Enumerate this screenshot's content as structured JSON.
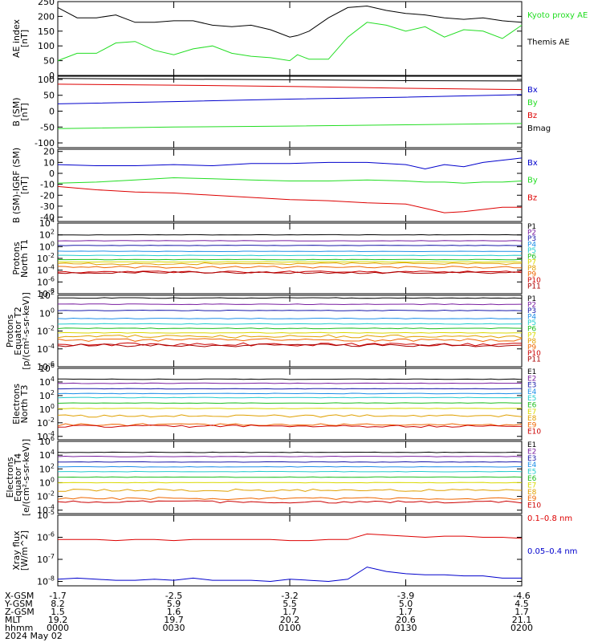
{
  "colors": {
    "black": "#000000",
    "green": "#22dd22",
    "blue": "#0000cc",
    "red": "#dd0000",
    "P1": "#000000",
    "P2": "#7a1fa0",
    "P3": "#1a1aaa",
    "P4": "#1e8fe8",
    "P5": "#22cccc",
    "P6": "#1ebe1e",
    "P7": "#d9d900",
    "P8": "#e0a000",
    "P9": "#ee6600",
    "P10": "#cc0000",
    "P11": "#aa0000"
  },
  "chart_data": [
    {
      "id": "ae",
      "type": "line",
      "ylabel": "AE index",
      "ylabel2": "[nT]",
      "yticks": [
        "250",
        "200",
        "150",
        "100",
        "50",
        "0"
      ],
      "yscale": "linear",
      "ylim": [
        0,
        250
      ],
      "x_minutes": [
        0,
        5,
        10,
        15,
        20,
        25,
        30,
        35,
        40,
        45,
        50,
        55,
        60,
        62,
        65,
        70,
        75,
        80,
        85,
        90,
        95,
        100,
        105,
        110,
        115,
        120
      ],
      "series": [
        {
          "name": "Themis AE",
          "color": "black",
          "values": [
            230,
            195,
            195,
            205,
            180,
            180,
            185,
            185,
            170,
            165,
            170,
            155,
            130,
            135,
            150,
            195,
            230,
            235,
            220,
            210,
            205,
            195,
            190,
            195,
            185,
            180
          ]
        },
        {
          "name": "Kyoto proxy AE",
          "color": "green",
          "values": [
            50,
            75,
            75,
            110,
            115,
            85,
            70,
            90,
            100,
            75,
            65,
            60,
            50,
            70,
            55,
            55,
            130,
            180,
            170,
            150,
            165,
            130,
            155,
            150,
            125,
            170
          ]
        }
      ],
      "legend": [
        "Kyoto proxy AE",
        "Themis AE"
      ]
    },
    {
      "id": "bsm",
      "type": "line",
      "ylabel": "B (SM)",
      "ylabel2": "[nT]",
      "yticks": [
        "100",
        "50",
        "0",
        "-50",
        "-100"
      ],
      "yscale": "linear",
      "ylim": [
        -115,
        110
      ],
      "x_minutes": [
        0,
        30,
        60,
        90,
        120
      ],
      "series": [
        {
          "name": "Bx",
          "color": "blue",
          "values": [
            23,
            30,
            38,
            44,
            52
          ]
        },
        {
          "name": "By",
          "color": "green",
          "values": [
            -55,
            -50,
            -47,
            -43,
            -39
          ]
        },
        {
          "name": "Bz",
          "color": "red",
          "values": [
            85,
            82,
            78,
            72,
            68
          ]
        },
        {
          "name": "Bmag",
          "color": "black",
          "values": [
            103,
            101,
            99,
            96,
            95
          ]
        }
      ],
      "legend": [
        "Bx",
        "By",
        "Bz",
        "Bmag"
      ]
    },
    {
      "id": "bsmigrf",
      "type": "line",
      "ylabel": "B (SM)-IGRF (SM)",
      "ylabel2": "[nT]",
      "yticks": [
        "20",
        "10",
        "0",
        "-10",
        "-20",
        "-30",
        "-40"
      ],
      "yscale": "linear",
      "ylim": [
        -44,
        22
      ],
      "x_minutes": [
        0,
        10,
        20,
        30,
        40,
        50,
        60,
        70,
        80,
        90,
        95,
        100,
        105,
        110,
        115,
        120
      ],
      "series": [
        {
          "name": "Bx",
          "color": "blue",
          "values": [
            8,
            7,
            7,
            8,
            7,
            9,
            9,
            10,
            10,
            8,
            4,
            8,
            6,
            10,
            12,
            14
          ]
        },
        {
          "name": "By",
          "color": "green",
          "values": [
            -9,
            -8,
            -6,
            -4,
            -5,
            -6,
            -7,
            -7,
            -6,
            -7,
            -8,
            -8,
            -9,
            -8,
            -8,
            -7
          ]
        },
        {
          "name": "Bz",
          "color": "red",
          "values": [
            -12,
            -15,
            -17,
            -18,
            -20,
            -22,
            -24,
            -25,
            -27,
            -28,
            -32,
            -36,
            -35,
            -33,
            -31,
            -31
          ]
        }
      ],
      "legend": [
        "Bx",
        "By",
        "Bz"
      ]
    },
    {
      "id": "protN",
      "type": "line",
      "ylabel": "Protons",
      "ylabel2": "North T1",
      "yticks": [
        "10^4",
        "10^2",
        "10^0",
        "10^-2",
        "10^-4",
        "10^-6",
        "10^-8"
      ],
      "yscale": "log",
      "ylim": [
        -8,
        4
      ],
      "legend": [
        "P1",
        "P2",
        "P3",
        "P4",
        "P5",
        "P6",
        "P7",
        "P8",
        "P9",
        "P10",
        "P11"
      ],
      "levels_log": [
        2.0,
        1.0,
        0.2,
        -0.8,
        -1.5,
        -2.2,
        -2.6,
        -2.9,
        -3.5,
        -4.3,
        -4.4
      ]
    },
    {
      "id": "protE",
      "type": "line",
      "ylabel": "Protons",
      "ylabel2": "Equator T2",
      "ylabel3": "[p/(cm²-s-sr-keV)]",
      "yticks": [
        "10^2",
        "10^0",
        "10^-2",
        "10^-4",
        "10^-6"
      ],
      "yscale": "log",
      "ylim": [
        -6,
        2
      ],
      "legend": [
        "P1",
        "P2",
        "P3",
        "P4",
        "P5",
        "P6",
        "P7",
        "P8",
        "P9",
        "P10",
        "P11"
      ],
      "levels_log": [
        1.7,
        1.0,
        0.3,
        -0.6,
        -1.2,
        -1.7,
        -2.2,
        -2.6,
        -3.0,
        -3.5,
        -3.6
      ]
    },
    {
      "id": "elecN",
      "type": "line",
      "ylabel": "Electrons",
      "ylabel2": "North T3",
      "yticks": [
        "10^6",
        "10^4",
        "10^2",
        "10^0",
        "10^-2",
        "10^-4"
      ],
      "yscale": "log",
      "ylim": [
        -4.5,
        6
      ],
      "legend": [
        "E1",
        "E2",
        "E3",
        "E4",
        "E5",
        "E6",
        "E7",
        "E8",
        "E9",
        "E10"
      ],
      "levels_log": [
        4.4,
        3.8,
        3.0,
        2.3,
        1.7,
        0.9,
        0.1,
        -1.0,
        -2.3,
        -2.5
      ]
    },
    {
      "id": "elecE",
      "type": "line",
      "ylabel": "Electrons",
      "ylabel2": "Equator T4",
      "ylabel3": "[e/(cm²-s-sr-keV)]",
      "yticks": [
        "10^6",
        "10^4",
        "10^2",
        "10^0",
        "10^-2",
        "10^-4"
      ],
      "yscale": "log",
      "ylim": [
        -4.5,
        6
      ],
      "legend": [
        "E1",
        "E2",
        "E3",
        "E4",
        "E5",
        "E6",
        "E7",
        "E8",
        "E9",
        "E10"
      ],
      "levels_log": [
        4.4,
        3.8,
        3.0,
        2.3,
        1.6,
        0.8,
        0.0,
        -1.1,
        -2.3,
        -2.8
      ]
    },
    {
      "id": "xray",
      "type": "line",
      "ylabel": "Xray flux",
      "ylabel2": "[W/m^2]",
      "yticks": [
        "10^-5",
        "10^-6",
        "10^-7",
        "10^-8"
      ],
      "yscale": "log",
      "ylim": [
        -8.2,
        -5
      ],
      "x_minutes": [
        0,
        5,
        10,
        15,
        20,
        25,
        30,
        35,
        40,
        45,
        50,
        55,
        60,
        65,
        70,
        75,
        80,
        85,
        90,
        95,
        100,
        105,
        110,
        115,
        120
      ],
      "series": [
        {
          "name": "0.1-0.8 nm",
          "color": "red",
          "values": [
            -6.1,
            -6.1,
            -6.1,
            -6.15,
            -6.1,
            -6.1,
            -6.15,
            -6.1,
            -6.1,
            -6.1,
            -6.1,
            -6.1,
            -6.15,
            -6.15,
            -6.1,
            -6.1,
            -5.85,
            -5.9,
            -5.95,
            -6.0,
            -5.95,
            -5.95,
            -6.0,
            -6.0,
            -6.05
          ]
        },
        {
          "name": "0.05-0.4 nm",
          "color": "blue",
          "values": [
            -7.9,
            -7.85,
            -7.9,
            -7.95,
            -7.95,
            -7.9,
            -7.95,
            -7.85,
            -7.95,
            -7.95,
            -7.95,
            -8.0,
            -7.9,
            -7.95,
            -8.0,
            -7.9,
            -7.35,
            -7.55,
            -7.65,
            -7.7,
            -7.7,
            -7.75,
            -7.75,
            -7.85,
            -7.85
          ]
        }
      ],
      "legend": [
        "0.1–0.8 nm",
        "0.05–0.4 nm"
      ]
    }
  ],
  "footer": {
    "labels": [
      "X-GSM",
      "Y-GSM",
      "Z-GSM",
      "MLT",
      "hhmm",
      "2024 May 02"
    ],
    "columns": [
      [
        "-1.7",
        "8.2",
        "1.5",
        "19.2",
        "0000"
      ],
      [
        "-2.5",
        "5.9",
        "1.6",
        "19.7",
        "0030"
      ],
      [
        "-3.2",
        "5.5",
        "1.7",
        "20.2",
        "0100"
      ],
      [
        "-3.9",
        "5.0",
        "1.7",
        "20.6",
        "0130"
      ],
      [
        "-4.6",
        "4.5",
        "1.7",
        "21.1",
        "0200"
      ]
    ]
  }
}
